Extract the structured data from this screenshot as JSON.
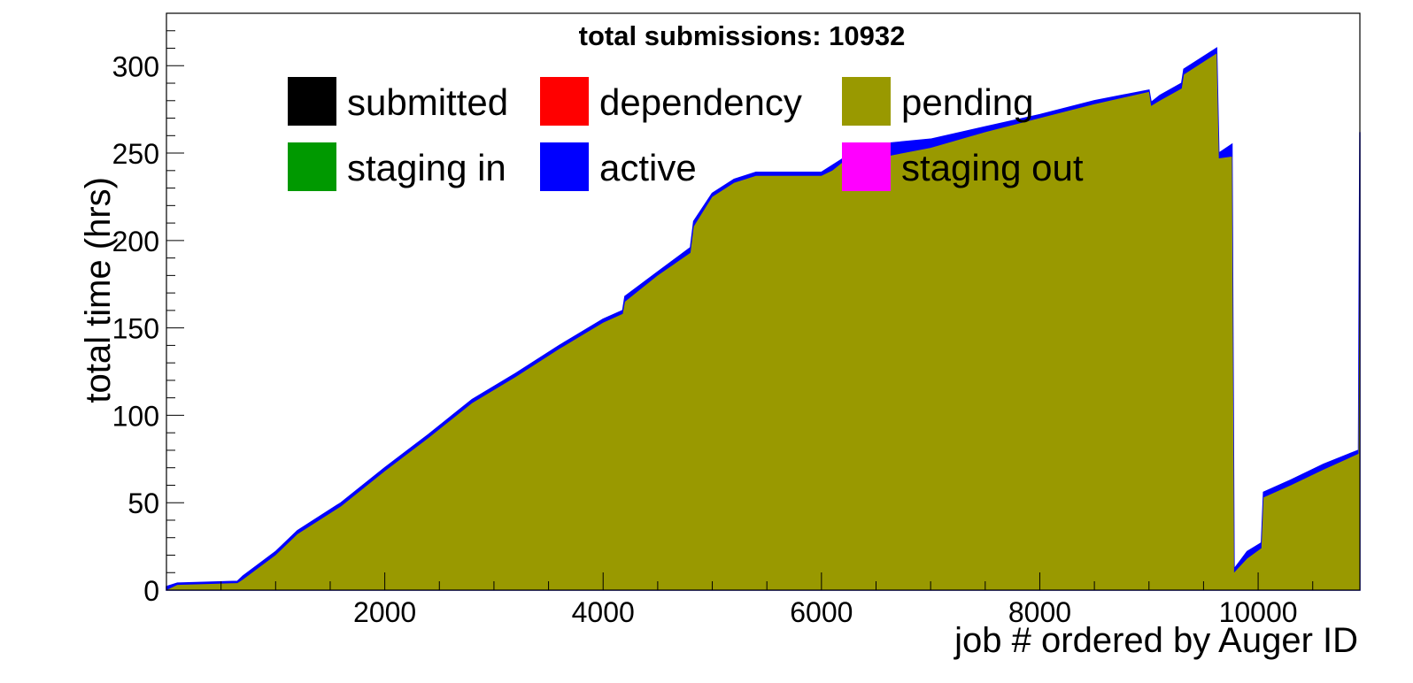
{
  "chart_data": {
    "type": "area",
    "title": "total submissions: 10932",
    "xlabel": "job # ordered by Auger ID",
    "ylabel": "total time (hrs)",
    "xlim": [
      0,
      10932
    ],
    "ylim": [
      0,
      330
    ],
    "x_ticks": [
      2000,
      4000,
      6000,
      8000,
      10000
    ],
    "y_ticks": [
      0,
      50,
      100,
      150,
      200,
      250,
      300
    ],
    "grid": false,
    "legend_position": "top",
    "legend": [
      {
        "name": "submitted",
        "color": "#000000"
      },
      {
        "name": "dependency",
        "color": "#ff0000"
      },
      {
        "name": "pending",
        "color": "#999900"
      },
      {
        "name": "staging in",
        "color": "#009900"
      },
      {
        "name": "active",
        "color": "#0000ff"
      },
      {
        "name": "staging out",
        "color": "#ff00ff"
      }
    ],
    "series": [
      {
        "name": "pending",
        "color": "#999900",
        "x": [
          0,
          100,
          650,
          700,
          1000,
          1200,
          1600,
          2000,
          2400,
          2800,
          3200,
          3600,
          4000,
          4180,
          4200,
          4500,
          4800,
          4830,
          5000,
          5200,
          5400,
          6000,
          6100,
          6200,
          6500,
          7000,
          7500,
          8000,
          8500,
          9000,
          9020,
          9100,
          9300,
          9320,
          9620,
          9640,
          9760,
          9780,
          9900,
          10030,
          10050,
          10300,
          10600,
          10920,
          10932
        ],
        "values": [
          0,
          3,
          4,
          6,
          20,
          32,
          48,
          68,
          87,
          107,
          122,
          138,
          153,
          158,
          165,
          180,
          193,
          208,
          225,
          233,
          237,
          237,
          240,
          245,
          247,
          253,
          262,
          270,
          278,
          285,
          277,
          280,
          287,
          295,
          307,
          247,
          248,
          10,
          18,
          24,
          53,
          60,
          69,
          78,
          233
        ]
      },
      {
        "name": "active",
        "color": "#0000ff",
        "x": [
          0,
          100,
          650,
          700,
          1000,
          1200,
          1600,
          2000,
          2400,
          2800,
          3200,
          3600,
          4000,
          4180,
          4200,
          4500,
          4800,
          4830,
          5000,
          5200,
          5400,
          6000,
          6100,
          6200,
          6500,
          7000,
          7500,
          8000,
          8500,
          9000,
          9020,
          9100,
          9300,
          9320,
          9620,
          9640,
          9760,
          9780,
          9900,
          10030,
          10050,
          10300,
          10600,
          10920,
          10932
        ],
        "values": [
          2,
          4,
          5,
          8,
          22,
          34,
          50,
          70,
          89,
          109,
          124,
          140,
          155,
          160,
          168,
          182,
          196,
          211,
          227,
          235,
          239,
          239,
          243,
          247,
          255,
          258,
          265,
          272,
          280,
          286,
          279,
          283,
          290,
          298,
          310,
          250,
          255,
          12,
          22,
          27,
          56,
          63,
          72,
          80,
          262
        ]
      },
      {
        "name": "submitted",
        "color": "#000000",
        "x": [],
        "values": []
      },
      {
        "name": "dependency",
        "color": "#ff0000",
        "x": [],
        "values": []
      },
      {
        "name": "staging in",
        "color": "#009900",
        "x": [],
        "values": []
      },
      {
        "name": "staging out",
        "color": "#ff00ff",
        "x": [],
        "values": []
      }
    ]
  }
}
